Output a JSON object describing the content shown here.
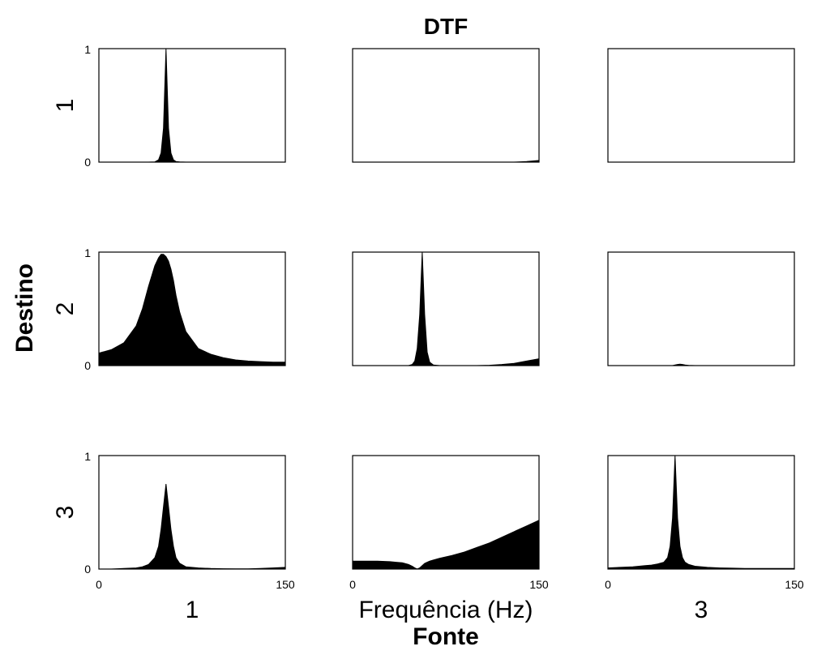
{
  "figure": {
    "title": "DTF",
    "xlabel": "Fonte",
    "ylabel": "Destino",
    "col_labels": [
      "1",
      "Frequência (Hz)",
      "3"
    ],
    "row_labels": [
      "1",
      "2",
      "3"
    ],
    "fill_color": "#000000",
    "axes_color": "#000000",
    "background": "#ffffff"
  },
  "chart_data": {
    "type": "area",
    "layout": "3x3 matrix of small filled-area plots",
    "title": "DTF",
    "xlabel": "Fonte",
    "ylabel": "Destino",
    "x_range": [
      0,
      150
    ],
    "y_range": [
      0,
      1
    ],
    "x_ticks": [
      "0",
      "150"
    ],
    "y_ticks": [
      "0",
      "1"
    ],
    "grid": false,
    "x": [
      0,
      10,
      20,
      30,
      35,
      40,
      45,
      48,
      50,
      52,
      54,
      56,
      58,
      60,
      62,
      65,
      70,
      80,
      90,
      100,
      110,
      120,
      130,
      140,
      150
    ],
    "panels": [
      {
        "row": 1,
        "col": 1,
        "values": [
          0,
          0,
          0,
          0,
          0,
          0,
          0.002,
          0.02,
          0.08,
          0.3,
          1.0,
          0.3,
          0.08,
          0.02,
          0.005,
          0.002,
          0,
          0,
          0,
          0,
          0,
          0,
          0,
          0,
          0
        ]
      },
      {
        "row": 1,
        "col": 2,
        "values": [
          0,
          0,
          0,
          0,
          0,
          0,
          0,
          0,
          0,
          0,
          0,
          0,
          0,
          0,
          0,
          0,
          0,
          0,
          0,
          0,
          0,
          0,
          0,
          0.005,
          0.015
        ]
      },
      {
        "row": 1,
        "col": 3,
        "values": [
          0,
          0,
          0,
          0,
          0,
          0,
          0,
          0,
          0,
          0,
          0,
          0,
          0,
          0,
          0,
          0,
          0,
          0,
          0,
          0,
          0,
          0,
          0,
          0,
          0
        ]
      },
      {
        "row": 2,
        "col": 1,
        "values": [
          0.11,
          0.14,
          0.2,
          0.35,
          0.5,
          0.7,
          0.88,
          0.95,
          0.98,
          0.98,
          0.96,
          0.92,
          0.85,
          0.75,
          0.62,
          0.47,
          0.3,
          0.15,
          0.1,
          0.07,
          0.05,
          0.04,
          0.035,
          0.03,
          0.03
        ]
      },
      {
        "row": 2,
        "col": 2,
        "values": [
          0,
          0,
          0,
          0,
          0,
          0,
          0,
          0.01,
          0.04,
          0.15,
          0.45,
          1.0,
          0.45,
          0.12,
          0.03,
          0.005,
          0,
          0,
          0,
          0,
          0.003,
          0.01,
          0.02,
          0.04,
          0.06
        ]
      },
      {
        "row": 2,
        "col": 3,
        "values": [
          0,
          0,
          0,
          0,
          0,
          0,
          0,
          0,
          0,
          0,
          0.005,
          0.01,
          0.012,
          0.01,
          0.005,
          0.002,
          0,
          0,
          0,
          0,
          0,
          0,
          0,
          0,
          0
        ]
      },
      {
        "row": 3,
        "col": 1,
        "values": [
          0,
          0,
          0.005,
          0.01,
          0.02,
          0.04,
          0.1,
          0.2,
          0.35,
          0.55,
          0.75,
          0.55,
          0.35,
          0.2,
          0.1,
          0.05,
          0.02,
          0.01,
          0.005,
          0.003,
          0.002,
          0.002,
          0.005,
          0.01,
          0.015
        ]
      },
      {
        "row": 3,
        "col": 2,
        "values": [
          0.07,
          0.07,
          0.07,
          0.065,
          0.06,
          0.055,
          0.04,
          0.025,
          0.01,
          0,
          0.01,
          0.03,
          0.05,
          0.06,
          0.07,
          0.08,
          0.095,
          0.12,
          0.15,
          0.19,
          0.23,
          0.28,
          0.33,
          0.38,
          0.43
        ]
      },
      {
        "row": 3,
        "col": 3,
        "values": [
          0.01,
          0.015,
          0.02,
          0.03,
          0.035,
          0.045,
          0.06,
          0.1,
          0.2,
          0.45,
          1.0,
          0.45,
          0.2,
          0.1,
          0.06,
          0.04,
          0.025,
          0.015,
          0.01,
          0.008,
          0.006,
          0.005,
          0.005,
          0.005,
          0.005
        ]
      }
    ]
  }
}
